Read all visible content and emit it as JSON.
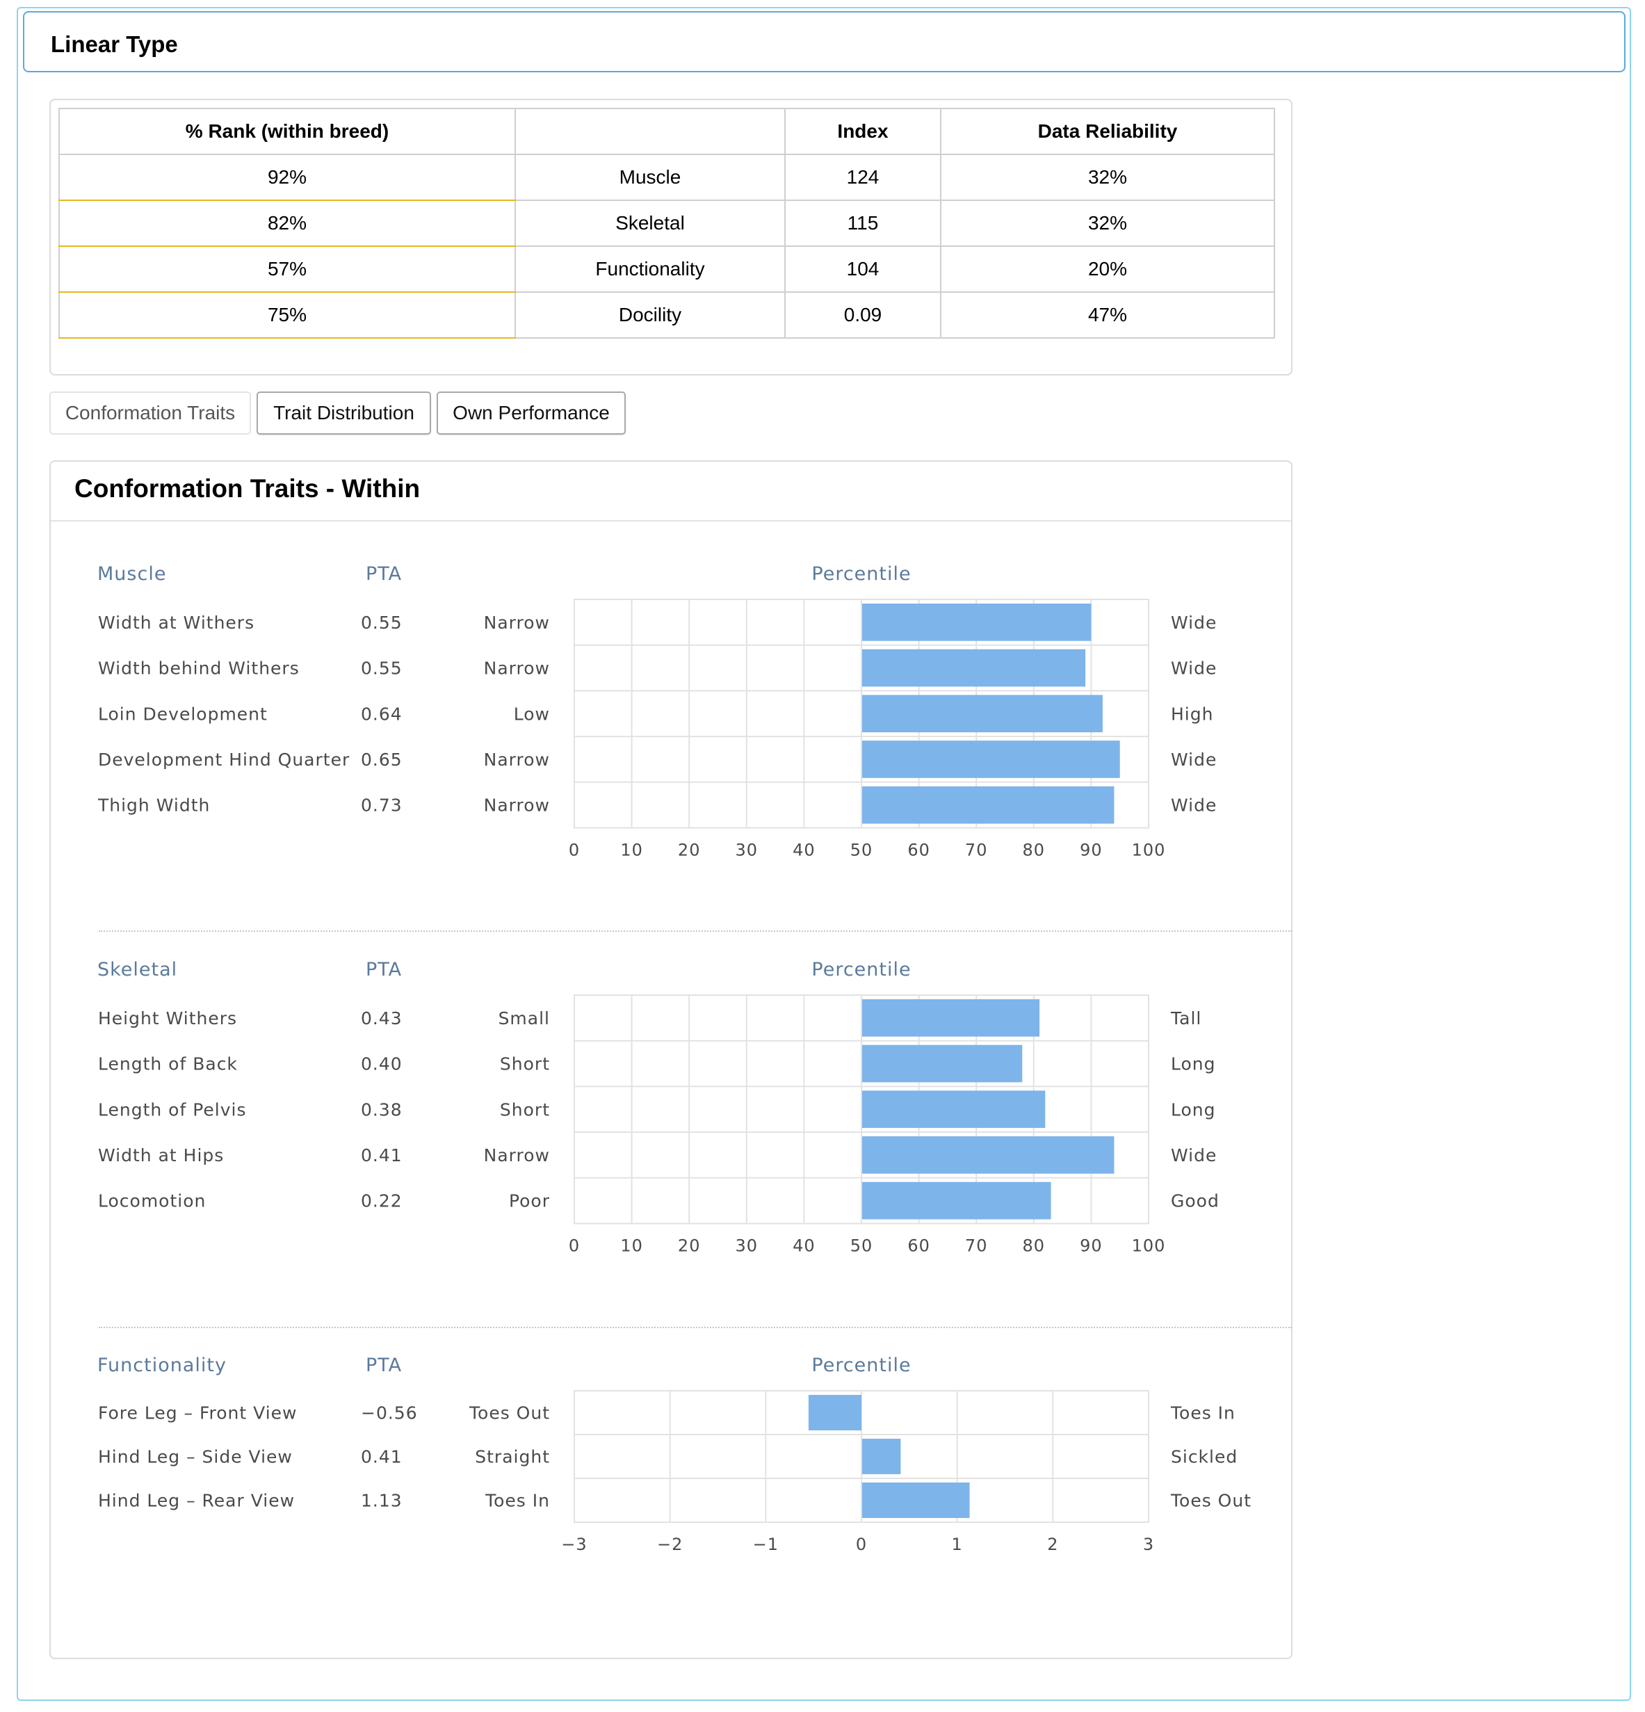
{
  "header": {
    "title": "Linear Type"
  },
  "summary_table": {
    "columns": [
      "% Rank (within breed)",
      "",
      "Index",
      "Data Reliability"
    ],
    "rows": [
      {
        "rank": "92%",
        "trait": "Muscle",
        "index": "124",
        "reliability": "32%"
      },
      {
        "rank": "82%",
        "trait": "Skeletal",
        "index": "115",
        "reliability": "32%"
      },
      {
        "rank": "57%",
        "trait": "Functionality",
        "index": "104",
        "reliability": "20%"
      },
      {
        "rank": "75%",
        "trait": "Docility",
        "index": "0.09",
        "reliability": "47%"
      }
    ]
  },
  "tabs": [
    {
      "label": "Conformation Traits",
      "active": true
    },
    {
      "label": "Trait Distribution",
      "active": false
    },
    {
      "label": "Own Performance",
      "active": false
    }
  ],
  "card": {
    "title": "Conformation Traits - Within"
  },
  "colors": {
    "bar": "#7db4ea",
    "header_text": "#5b7a9b",
    "header_border": "#5aa9dd",
    "rank_underline": "#e5b822"
  },
  "chart_data": [
    {
      "type": "bar",
      "orientation": "horizontal",
      "group": "Muscle",
      "pta_header": "PTA",
      "axis_title": "Percentile",
      "xlim": [
        0,
        100
      ],
      "ticks": [
        "0",
        "10",
        "20",
        "30",
        "40",
        "50",
        "60",
        "70",
        "80",
        "90",
        "100"
      ],
      "baseline": 50,
      "rows": [
        {
          "trait": "Width at Withers",
          "pta": "0.55",
          "low": "Narrow",
          "high": "Wide",
          "value": 90
        },
        {
          "trait": "Width behind Withers",
          "pta": "0.55",
          "low": "Narrow",
          "high": "Wide",
          "value": 89
        },
        {
          "trait": "Loin Development",
          "pta": "0.64",
          "low": "Low",
          "high": "High",
          "value": 92
        },
        {
          "trait": "Development Hind Quarter",
          "pta": "0.65",
          "low": "Narrow",
          "high": "Wide",
          "value": 95
        },
        {
          "trait": "Thigh Width",
          "pta": "0.73",
          "low": "Narrow",
          "high": "Wide",
          "value": 94
        }
      ]
    },
    {
      "type": "bar",
      "orientation": "horizontal",
      "group": "Skeletal",
      "pta_header": "PTA",
      "axis_title": "Percentile",
      "xlim": [
        0,
        100
      ],
      "ticks": [
        "0",
        "10",
        "20",
        "30",
        "40",
        "50",
        "60",
        "70",
        "80",
        "90",
        "100"
      ],
      "baseline": 50,
      "rows": [
        {
          "trait": "Height Withers",
          "pta": "0.43",
          "low": "Small",
          "high": "Tall",
          "value": 81
        },
        {
          "trait": "Length of Back",
          "pta": "0.40",
          "low": "Short",
          "high": "Long",
          "value": 78
        },
        {
          "trait": "Length of Pelvis",
          "pta": "0.38",
          "low": "Short",
          "high": "Long",
          "value": 82
        },
        {
          "trait": "Width at Hips",
          "pta": "0.41",
          "low": "Narrow",
          "high": "Wide",
          "value": 94
        },
        {
          "trait": "Locomotion",
          "pta": "0.22",
          "low": "Poor",
          "high": "Good",
          "value": 83
        }
      ]
    },
    {
      "type": "bar",
      "orientation": "horizontal",
      "group": "Functionality",
      "pta_header": "PTA",
      "axis_title": "Percentile",
      "xlim": [
        -3,
        3
      ],
      "ticks": [
        "−3",
        "−2",
        "−1",
        "0",
        "1",
        "2",
        "3"
      ],
      "baseline": 0,
      "rows": [
        {
          "trait": "Fore Leg – Front View",
          "pta": "−0.56",
          "low": "Toes Out",
          "high": "Toes In",
          "value": -0.56
        },
        {
          "trait": "Hind Leg – Side View",
          "pta": "0.41",
          "low": "Straight",
          "high": "Sickled",
          "value": 0.41
        },
        {
          "trait": "Hind Leg – Rear View",
          "pta": "1.13",
          "low": "Toes In",
          "high": "Toes Out",
          "value": 1.13
        }
      ]
    }
  ]
}
